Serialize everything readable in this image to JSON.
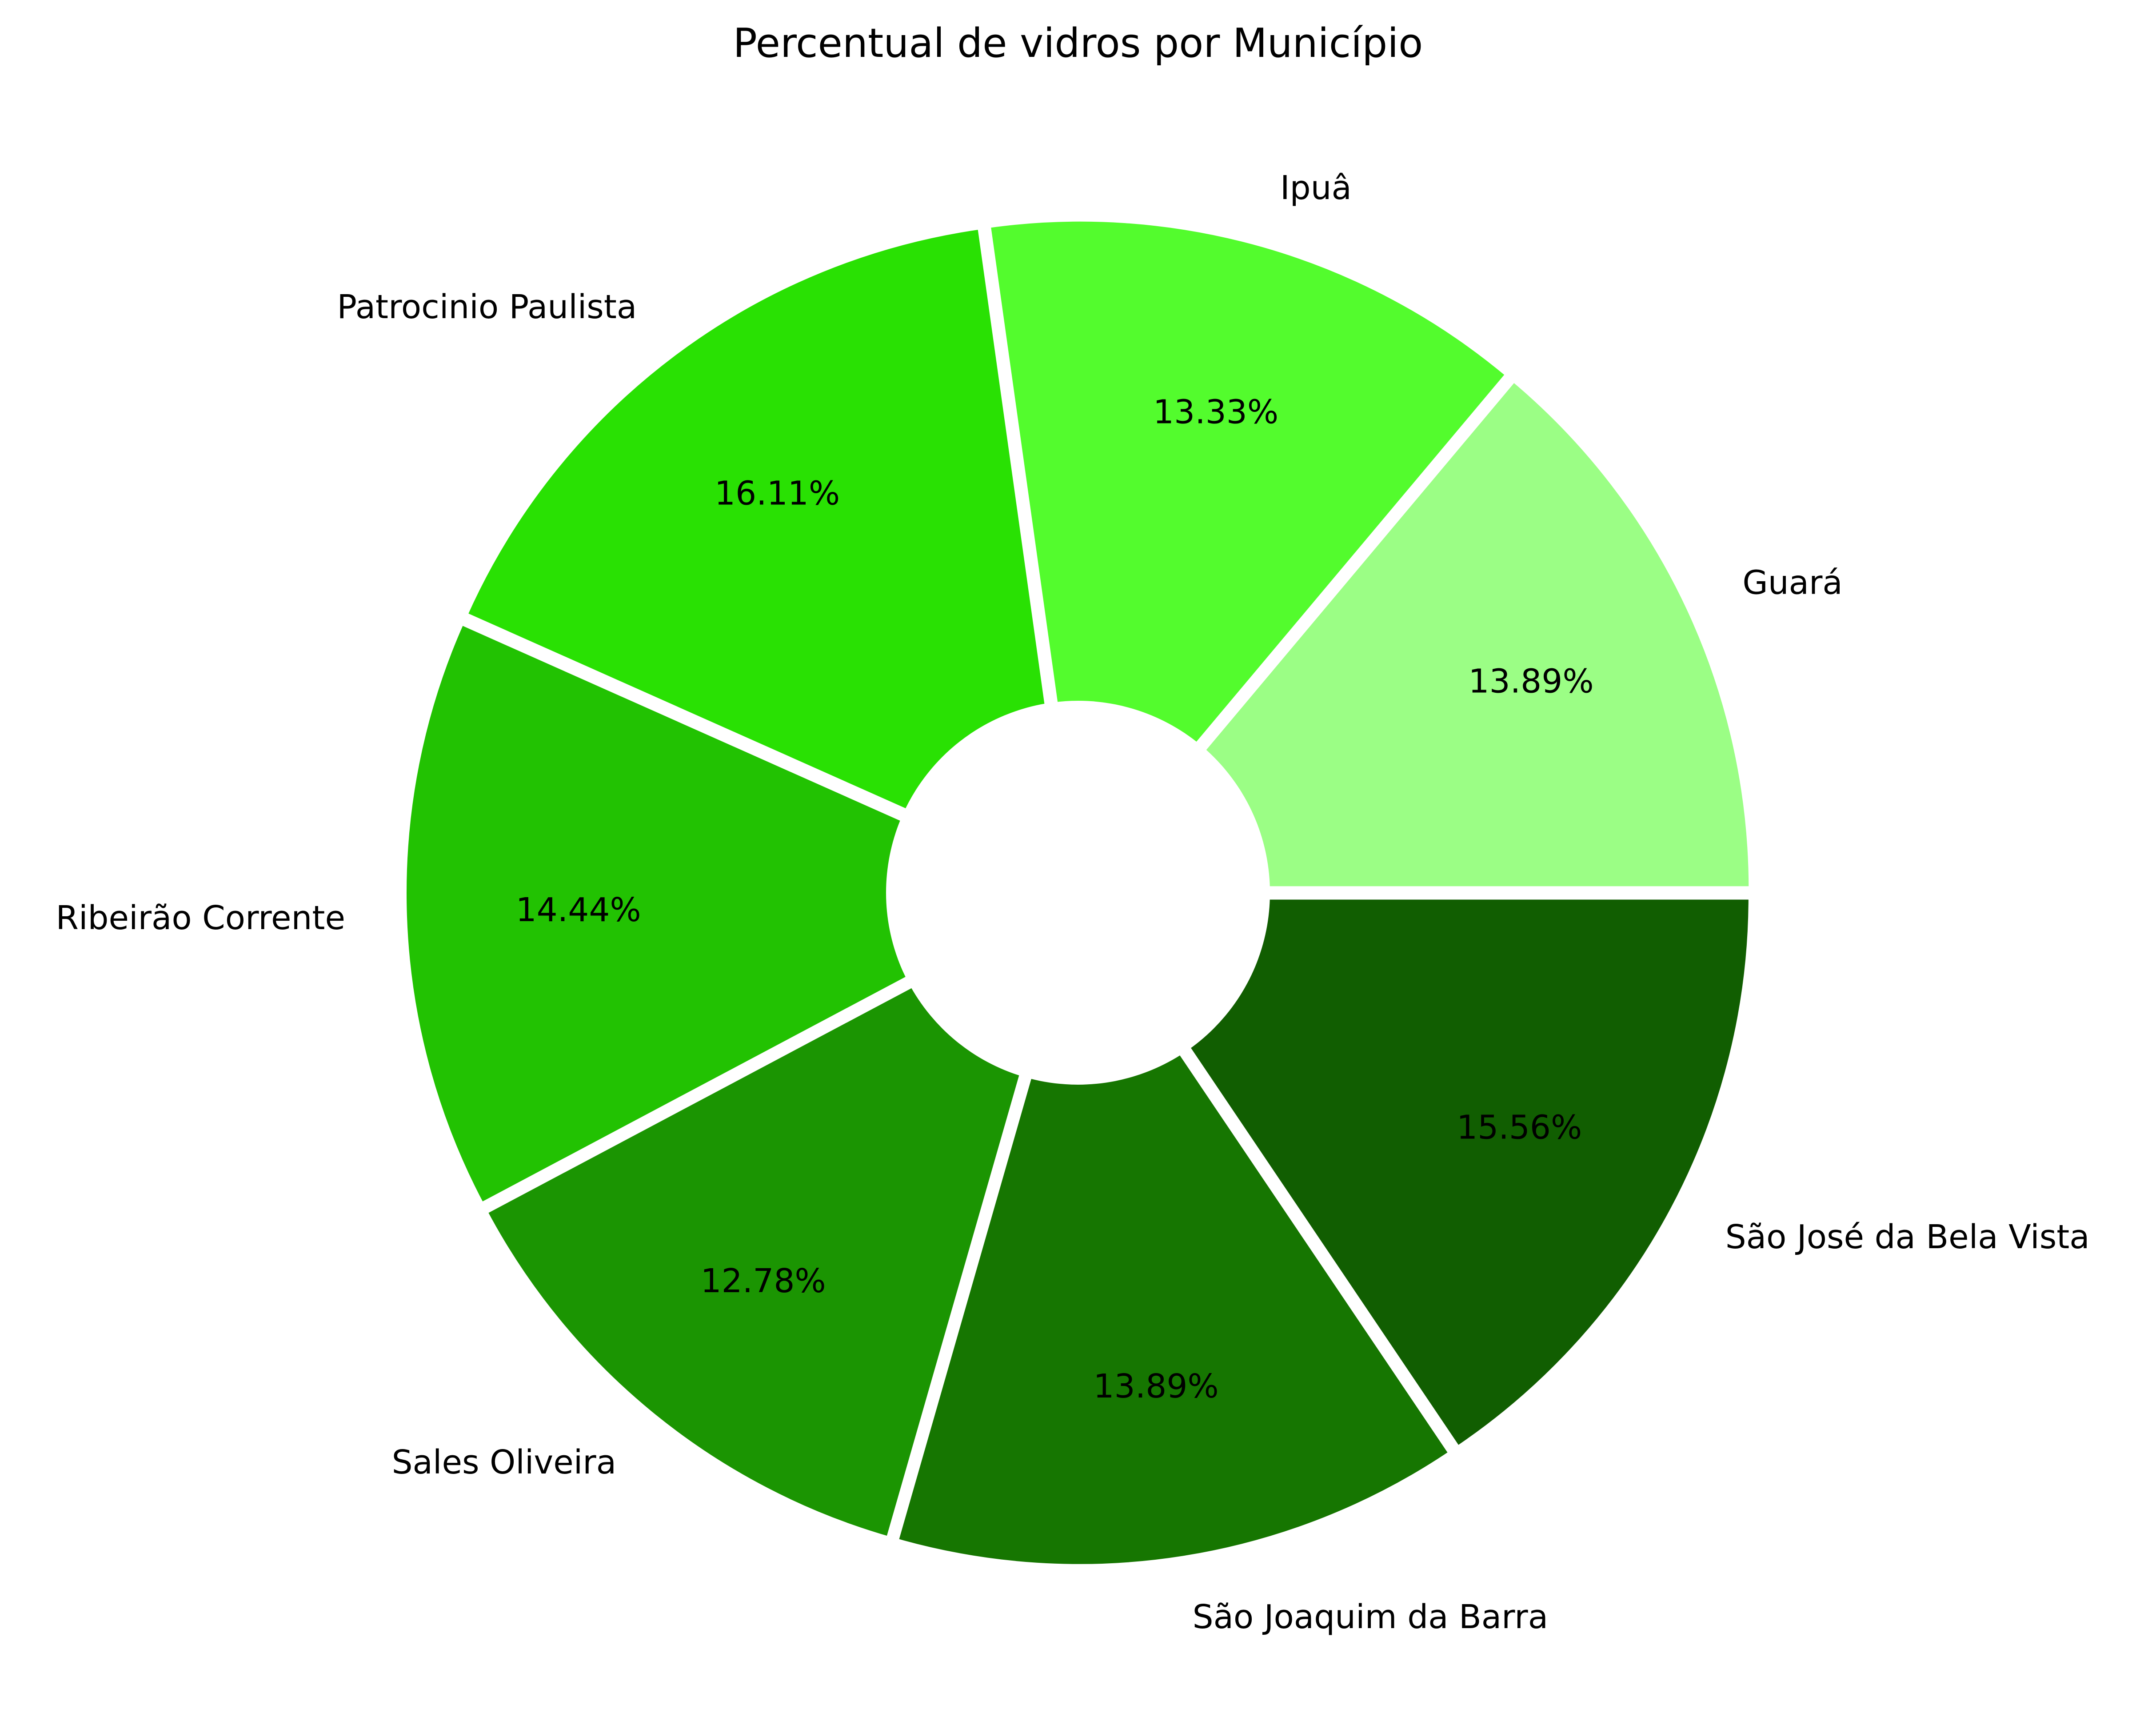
{
  "chart_data": {
    "type": "pie",
    "title": "Percentual de vidros por Município",
    "categories": [
      "Guará",
      "Ipuâ",
      "Patrocinio Paulista",
      "Ribeirão Corrente",
      "Sales Oliveira",
      "São Joaquim da Barra",
      "São José da Bela Vista"
    ],
    "values": [
      13.89,
      13.33,
      16.11,
      14.44,
      12.78,
      13.89,
      15.56
    ],
    "value_labels": [
      "13.89%",
      "13.33%",
      "16.11%",
      "14.44%",
      "12.78%",
      "13.89%",
      "15.56%"
    ],
    "colors": [
      "#9bfe85",
      "#53fc2d",
      "#29e103",
      "#22c202",
      "#1b9502",
      "#167601",
      "#115e01"
    ],
    "donut": true,
    "exploded_slices": true,
    "legend": "none"
  }
}
